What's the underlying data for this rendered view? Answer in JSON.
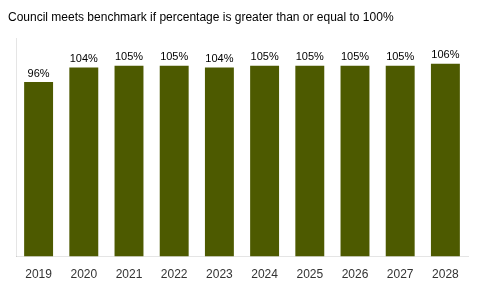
{
  "chart_data": {
    "type": "bar",
    "title": "Council meets benchmark if percentage is greater than or equal to 100%",
    "categories": [
      "2019",
      "2020",
      "2021",
      "2022",
      "2023",
      "2024",
      "2025",
      "2026",
      "2027",
      "2028"
    ],
    "values": [
      96,
      104,
      105,
      105,
      104,
      105,
      105,
      105,
      105,
      106
    ],
    "value_labels": [
      "96%",
      "104%",
      "105%",
      "105%",
      "104%",
      "105%",
      "105%",
      "105%",
      "105%",
      "106%"
    ],
    "data_labels": true,
    "color": "#4d5a00",
    "ylim": [
      0,
      120
    ],
    "grid": false,
    "tick_labels": "x"
  }
}
